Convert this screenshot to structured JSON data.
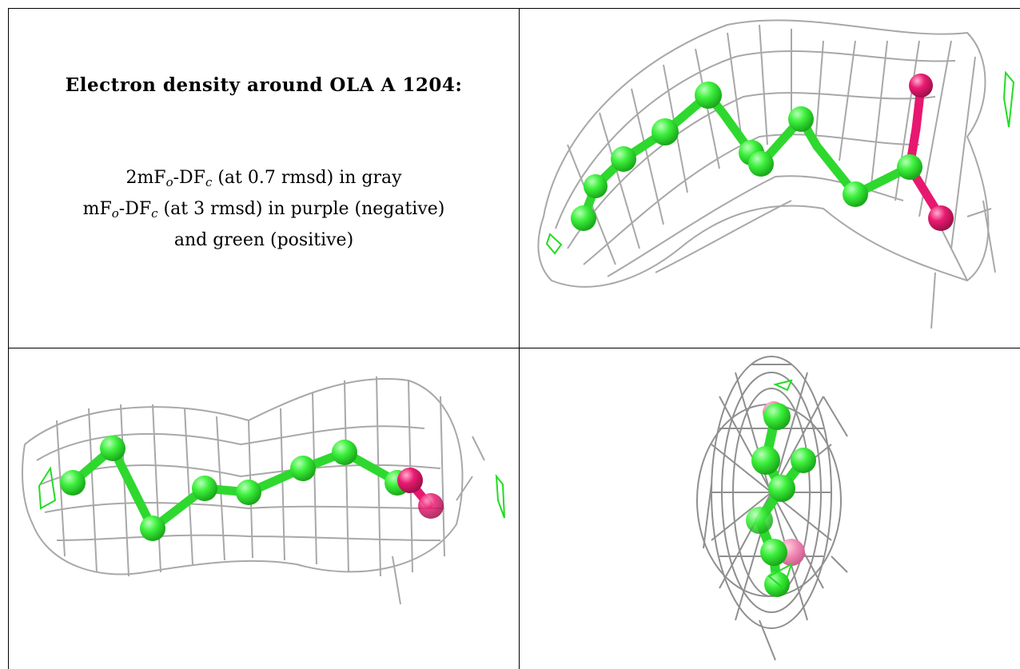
{
  "caption": {
    "title": "Electron density around OLA A 1204:",
    "line1": {
      "prefix": "2mF",
      "sub_o": "o",
      "mid": "-DF",
      "sub_c": "c",
      "suffix": " (at 0.7 rmsd) in gray"
    },
    "line2": {
      "prefix": "mF",
      "sub_o": "o",
      "mid": "-DF",
      "sub_c": "c",
      "suffix": " (at 3 rmsd) in purple (negative)"
    },
    "line3": "and green (positive)"
  },
  "colors": {
    "mesh_2fofc": "#a9a9a9",
    "carbon": "#33ee33",
    "oxygen": "#e8176f",
    "positive_density": "#22dd22"
  },
  "panels": [
    "view-top-right",
    "view-bottom-left",
    "view-bottom-right"
  ]
}
